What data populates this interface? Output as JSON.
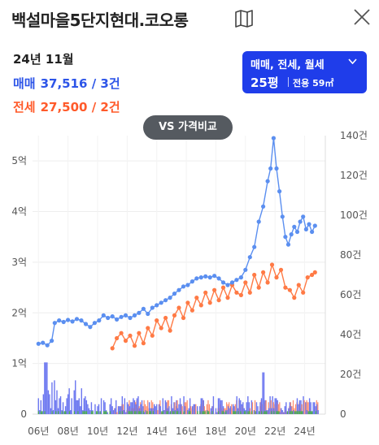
{
  "header": {
    "title": "백설마을5단지현대.코오롱",
    "map_icon": "map-icon",
    "close_icon": "close-icon"
  },
  "summary": {
    "period": "24년 11월",
    "sale_label": "매매",
    "sale_value": "37,516 / 3건",
    "rent_label": "전세",
    "rent_value": "27,500 / 2건"
  },
  "filter": {
    "types": "매매, 전세, 월세",
    "size": "25평",
    "area": "전용 59㎡"
  },
  "compare_button": "VS 가격비교",
  "colors": {
    "sale": "#5b8ff0",
    "rent": "#ff7a45",
    "sale_text": "#2d55e8",
    "rent_text": "#ff5a2a",
    "button": "#1f3dea"
  },
  "chart_data": {
    "type": "line",
    "x_ticks": [
      "06년",
      "08년",
      "10년",
      "12년",
      "14년",
      "16년",
      "18년",
      "20년",
      "22년",
      "24년"
    ],
    "y_left_ticks": [
      "0",
      "1억",
      "2억",
      "3억",
      "4억",
      "5억"
    ],
    "y_right_ticks": [
      "0",
      "20건",
      "40건",
      "60건",
      "80건",
      "100건",
      "120건",
      "140건"
    ],
    "y_left_range": [
      0,
      5.5
    ],
    "y_right_range": [
      0,
      140
    ],
    "series": [
      {
        "color": "#5b8ff0",
        "points": [
          [
            2006.0,
            1.39
          ],
          [
            2006.3,
            1.41
          ],
          [
            2006.6,
            1.36
          ],
          [
            2006.9,
            1.45
          ],
          [
            2007.1,
            1.8
          ],
          [
            2007.4,
            1.85
          ],
          [
            2007.7,
            1.82
          ],
          [
            2008.0,
            1.86
          ],
          [
            2008.3,
            1.83
          ],
          [
            2008.6,
            1.88
          ],
          [
            2008.9,
            1.85
          ],
          [
            2009.2,
            1.78
          ],
          [
            2009.5,
            1.72
          ],
          [
            2009.8,
            1.8
          ],
          [
            2010.1,
            1.85
          ],
          [
            2010.4,
            1.95
          ],
          [
            2010.7,
            1.9
          ],
          [
            2011.0,
            1.93
          ],
          [
            2011.3,
            1.87
          ],
          [
            2011.6,
            1.92
          ],
          [
            2011.9,
            1.95
          ],
          [
            2012.2,
            1.9
          ],
          [
            2012.5,
            1.95
          ],
          [
            2012.8,
            2.0
          ],
          [
            2013.1,
            2.08
          ],
          [
            2013.4,
            1.98
          ],
          [
            2013.7,
            2.1
          ],
          [
            2014.0,
            2.15
          ],
          [
            2014.3,
            2.2
          ],
          [
            2014.6,
            2.25
          ],
          [
            2014.9,
            2.3
          ],
          [
            2015.2,
            2.38
          ],
          [
            2015.5,
            2.45
          ],
          [
            2015.8,
            2.52
          ],
          [
            2016.1,
            2.55
          ],
          [
            2016.4,
            2.62
          ],
          [
            2016.7,
            2.68
          ],
          [
            2017.0,
            2.7
          ],
          [
            2017.3,
            2.72
          ],
          [
            2017.6,
            2.7
          ],
          [
            2017.9,
            2.73
          ],
          [
            2018.2,
            2.68
          ],
          [
            2018.5,
            2.6
          ],
          [
            2018.8,
            2.55
          ],
          [
            2019.1,
            2.6
          ],
          [
            2019.4,
            2.65
          ],
          [
            2019.7,
            2.7
          ],
          [
            2020.0,
            2.85
          ],
          [
            2020.3,
            3.1
          ],
          [
            2020.6,
            3.3
          ],
          [
            2020.9,
            3.8
          ],
          [
            2021.2,
            4.1
          ],
          [
            2021.5,
            4.6
          ],
          [
            2021.7,
            4.85
          ],
          [
            2021.9,
            5.45
          ],
          [
            2022.1,
            4.85
          ],
          [
            2022.3,
            4.4
          ],
          [
            2022.5,
            3.9
          ],
          [
            2022.7,
            3.5
          ],
          [
            2022.9,
            3.35
          ],
          [
            2023.1,
            3.55
          ],
          [
            2023.3,
            3.7
          ],
          [
            2023.5,
            3.6
          ],
          [
            2023.7,
            3.8
          ],
          [
            2023.9,
            3.9
          ],
          [
            2024.1,
            3.65
          ],
          [
            2024.3,
            3.75
          ],
          [
            2024.5,
            3.6
          ],
          [
            2024.7,
            3.72
          ]
        ]
      },
      {
        "color": "#ff7a45",
        "points": [
          [
            2011.0,
            1.3
          ],
          [
            2011.3,
            1.5
          ],
          [
            2011.6,
            1.6
          ],
          [
            2011.9,
            1.45
          ],
          [
            2012.2,
            1.55
          ],
          [
            2012.5,
            1.35
          ],
          [
            2012.8,
            1.6
          ],
          [
            2013.1,
            1.4
          ],
          [
            2013.4,
            1.7
          ],
          [
            2013.7,
            1.55
          ],
          [
            2014.0,
            1.85
          ],
          [
            2014.3,
            1.7
          ],
          [
            2014.6,
            1.9
          ],
          [
            2014.9,
            1.65
          ],
          [
            2015.2,
            1.95
          ],
          [
            2015.5,
            2.1
          ],
          [
            2015.8,
            1.9
          ],
          [
            2016.1,
            2.2
          ],
          [
            2016.4,
            2.05
          ],
          [
            2016.7,
            2.3
          ],
          [
            2017.0,
            2.15
          ],
          [
            2017.3,
            2.4
          ],
          [
            2017.6,
            2.2
          ],
          [
            2017.9,
            2.45
          ],
          [
            2018.2,
            2.25
          ],
          [
            2018.5,
            2.5
          ],
          [
            2018.8,
            2.3
          ],
          [
            2019.1,
            2.55
          ],
          [
            2019.4,
            2.4
          ],
          [
            2019.7,
            2.35
          ],
          [
            2020.0,
            2.6
          ],
          [
            2020.3,
            2.4
          ],
          [
            2020.6,
            2.75
          ],
          [
            2020.9,
            2.5
          ],
          [
            2021.2,
            2.8
          ],
          [
            2021.5,
            2.6
          ],
          [
            2021.8,
            2.95
          ],
          [
            2022.1,
            2.7
          ],
          [
            2022.4,
            2.85
          ],
          [
            2022.7,
            2.5
          ],
          [
            2023.0,
            2.45
          ],
          [
            2023.3,
            2.3
          ],
          [
            2023.6,
            2.55
          ],
          [
            2023.9,
            2.4
          ],
          [
            2024.2,
            2.7
          ],
          [
            2024.5,
            2.75
          ],
          [
            2024.7,
            2.8
          ]
        ]
      }
    ],
    "volume": {
      "sale_color": "#6b76f0",
      "rent_color": "#ff8a6a",
      "monthly_color": "#4caf50"
    }
  }
}
